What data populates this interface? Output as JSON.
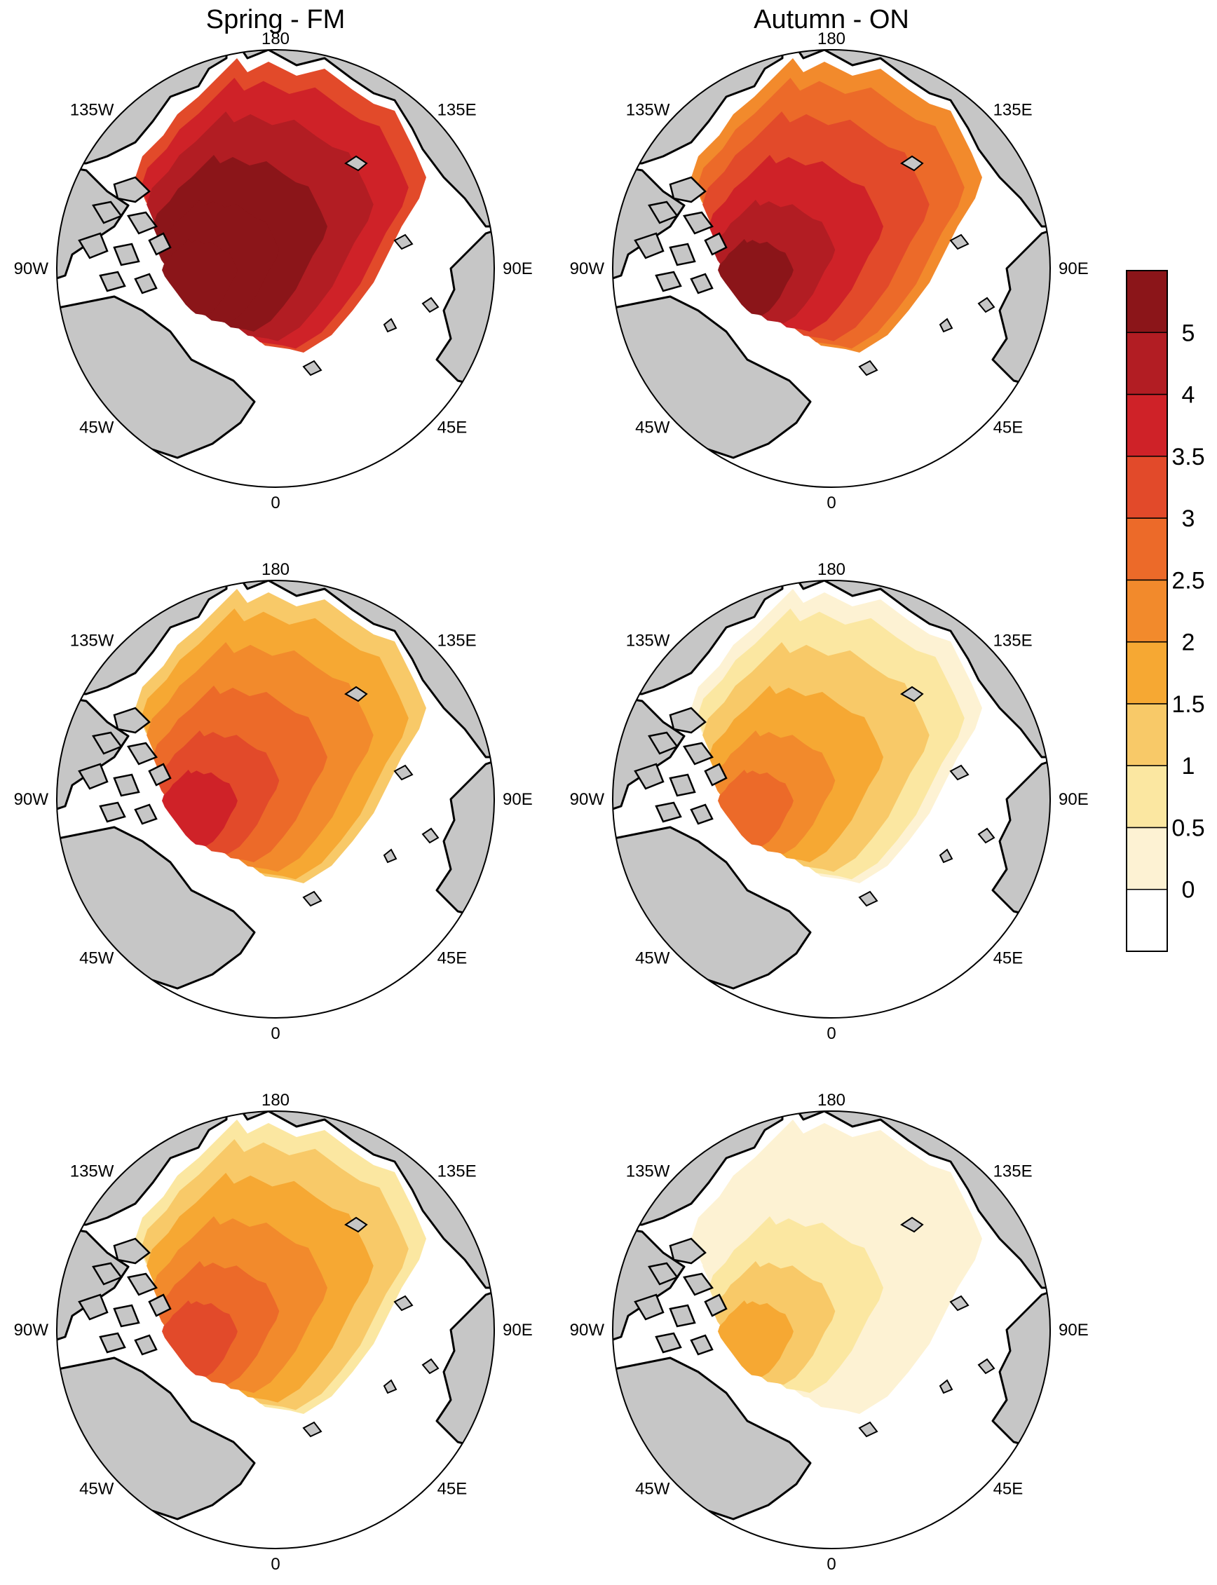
{
  "columns": [
    {
      "title": "Spring - FM"
    },
    {
      "title": "Autumn - ON"
    }
  ],
  "longitude_labels": {
    "top": "180",
    "upper_left": "135W",
    "upper_right": "135E",
    "left": "90W",
    "right": "90E",
    "lower_left": "45W",
    "lower_right": "45E",
    "bottom": "0"
  },
  "colorbar": {
    "levels": [
      "0",
      "0.5",
      "1",
      "1.5",
      "2",
      "2.5",
      "3",
      "3.5",
      "4",
      "5"
    ],
    "colors": [
      "#ffffff",
      "#fdf2d3",
      "#fbe7a1",
      "#f8c968",
      "#f6a833",
      "#f28a2c",
      "#ec6a29",
      "#e24a2a",
      "#cf2228",
      "#b21d23",
      "#8b1519"
    ]
  },
  "colors": {
    "land": "#c6c6c6",
    "coast": "#000000",
    "ocean": "#ffffff"
  },
  "panels": [
    {
      "id": "spring-1",
      "column": 0,
      "row": 0,
      "intensity": 0.95
    },
    {
      "id": "autumn-1",
      "column": 1,
      "row": 0,
      "intensity": 0.75
    },
    {
      "id": "spring-2",
      "column": 0,
      "row": 1,
      "intensity": 0.62
    },
    {
      "id": "autumn-2",
      "column": 1,
      "row": 1,
      "intensity": 0.35
    },
    {
      "id": "spring-3",
      "column": 0,
      "row": 2,
      "intensity": 0.5
    },
    {
      "id": "autumn-3",
      "column": 1,
      "row": 2,
      "intensity": 0.22
    }
  ]
}
